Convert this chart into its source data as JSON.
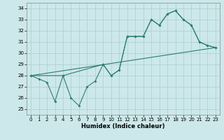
{
  "title": "",
  "xlabel": "Humidex (Indice chaleur)",
  "ylabel": "",
  "xlim": [
    -0.5,
    23.5
  ],
  "ylim": [
    24.5,
    34.5
  ],
  "yticks": [
    25,
    26,
    27,
    28,
    29,
    30,
    31,
    32,
    33,
    34
  ],
  "xticks": [
    0,
    1,
    2,
    3,
    4,
    5,
    6,
    7,
    8,
    9,
    10,
    11,
    12,
    13,
    14,
    15,
    16,
    17,
    18,
    19,
    20,
    21,
    22,
    23
  ],
  "bg_color": "#cce8ea",
  "line_color": "#2e7d6e",
  "grid_color": "#aacdd0",
  "series1": {
    "x": [
      0,
      1,
      2,
      3,
      4,
      5,
      6,
      7,
      8,
      9,
      10,
      11,
      12,
      13,
      14,
      15,
      16,
      17,
      18,
      19,
      20,
      21,
      22,
      23
    ],
    "y": [
      28,
      27.7,
      27.4,
      25.7,
      28,
      26,
      25.3,
      27,
      27.5,
      29,
      28,
      28.5,
      31.5,
      31.5,
      31.5,
      33,
      32.5,
      33.5,
      33.8,
      33,
      32.5,
      31,
      30.7,
      30.5
    ]
  },
  "series2": {
    "x": [
      0,
      4,
      9,
      10,
      11,
      12,
      13,
      14,
      15,
      16,
      17,
      18,
      19,
      20,
      21,
      22,
      23
    ],
    "y": [
      28,
      28,
      29,
      28,
      28.5,
      31.5,
      31.5,
      31.5,
      33,
      32.5,
      33.5,
      33.8,
      33,
      32.5,
      31,
      30.7,
      30.5
    ]
  },
  "series3": {
    "x": [
      0,
      23
    ],
    "y": [
      28,
      30.5
    ]
  }
}
